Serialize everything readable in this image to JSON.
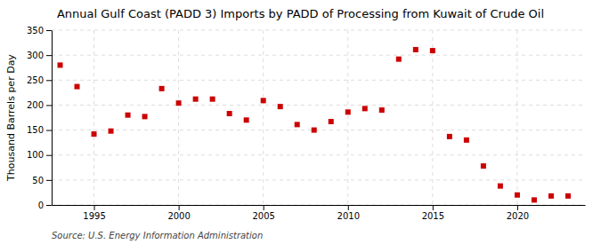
{
  "chart_data": {
    "type": "scatter",
    "title": "Annual Gulf Coast (PADD 3) Imports by PADD of Processing from Kuwait of Crude Oil",
    "ylabel": "Thousand Barrels per Day",
    "source": "Source: U.S. Energy Information Administration",
    "x": [
      1993,
      1994,
      1995,
      1996,
      1997,
      1998,
      1999,
      2000,
      2001,
      2002,
      2003,
      2004,
      2005,
      2006,
      2007,
      2008,
      2009,
      2010,
      2011,
      2012,
      2013,
      2014,
      2015,
      2016,
      2017,
      2018,
      2019,
      2020,
      2021,
      2022,
      2023
    ],
    "values": [
      280,
      237,
      142,
      148,
      180,
      177,
      233,
      204,
      212,
      212,
      183,
      170,
      209,
      197,
      161,
      150,
      167,
      186,
      193,
      190,
      292,
      311,
      309,
      137,
      130,
      78,
      38,
      20,
      10,
      18,
      18
    ],
    "color": "#cc0000",
    "marker": "square",
    "xlim": [
      1992.5,
      2024
    ],
    "xticks": [
      1995,
      2000,
      2005,
      2010,
      2015,
      2020
    ],
    "ylim": [
      0,
      350
    ],
    "yticks": [
      0,
      50,
      100,
      150,
      200,
      250,
      300,
      350
    ],
    "grid": true
  }
}
